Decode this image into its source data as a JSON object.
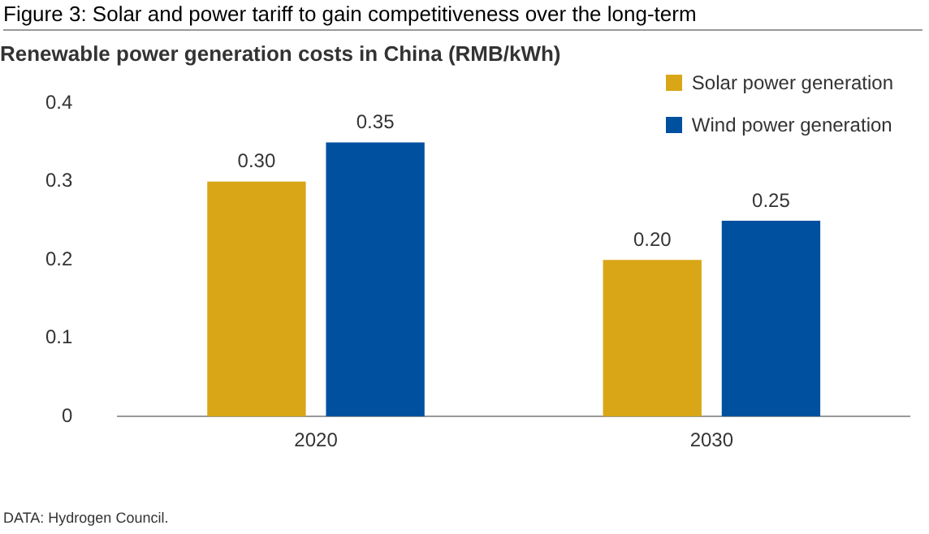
{
  "chart_data": {
    "type": "bar",
    "title": "Figure 3: Solar and power tariff to gain competitiveness over the long-term",
    "subtitle": "Renewable power generation costs in China (RMB/kWh)",
    "categories": [
      "2020",
      "2030"
    ],
    "series": [
      {
        "name": "Solar power generation",
        "color": "#d8a617",
        "values": [
          0.3,
          0.2
        ]
      },
      {
        "name": "Wind power generation",
        "color": "#0050a0",
        "values": [
          0.35,
          0.25
        ]
      }
    ],
    "value_labels": [
      [
        "0.30",
        "0.20"
      ],
      [
        "0.35",
        "0.25"
      ]
    ],
    "ylim": [
      0,
      0.4
    ],
    "yticks": [
      {
        "value": 0,
        "label": "0"
      },
      0.1,
      0.2,
      0.3,
      0.4
    ],
    "grid": false,
    "legend": "top right",
    "annotations": [
      "DATA: Hydrogen Council."
    ]
  }
}
